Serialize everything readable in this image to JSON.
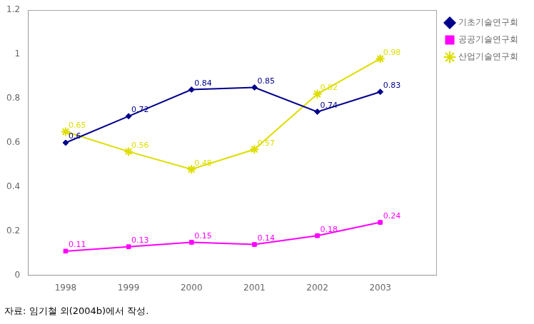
{
  "chart_data": {
    "type": "line",
    "x": [
      1998,
      1999,
      2000,
      2001,
      2002,
      2003
    ],
    "xlim": [
      1997.4,
      2003.9
    ],
    "xticks": [
      1998,
      1999,
      2000,
      2001,
      2002,
      2003
    ],
    "ylim": [
      0,
      1.2
    ],
    "yticks": [
      0,
      0.2,
      0.4,
      0.6,
      0.8,
      1,
      1.2
    ],
    "grid": false,
    "legend": "right",
    "data_labels": true,
    "annotations": [
      "자료: 임기철 외(2004b)에서 작성."
    ],
    "series": [
      {
        "name": "기초기술연구회",
        "color": "#00008B",
        "marker": "diamond",
        "values": [
          0.6,
          0.72,
          0.84,
          0.85,
          0.74,
          0.83
        ]
      },
      {
        "name": "공공기술연구회",
        "color": "#FF00FF",
        "marker": "square",
        "values": [
          0.11,
          0.13,
          0.15,
          0.14,
          0.18,
          0.24
        ]
      },
      {
        "name": "산업기술연구회",
        "color": "#DDDD00",
        "marker": "star",
        "values": [
          0.65,
          0.56,
          0.48,
          0.57,
          0.82,
          0.98
        ]
      }
    ]
  }
}
